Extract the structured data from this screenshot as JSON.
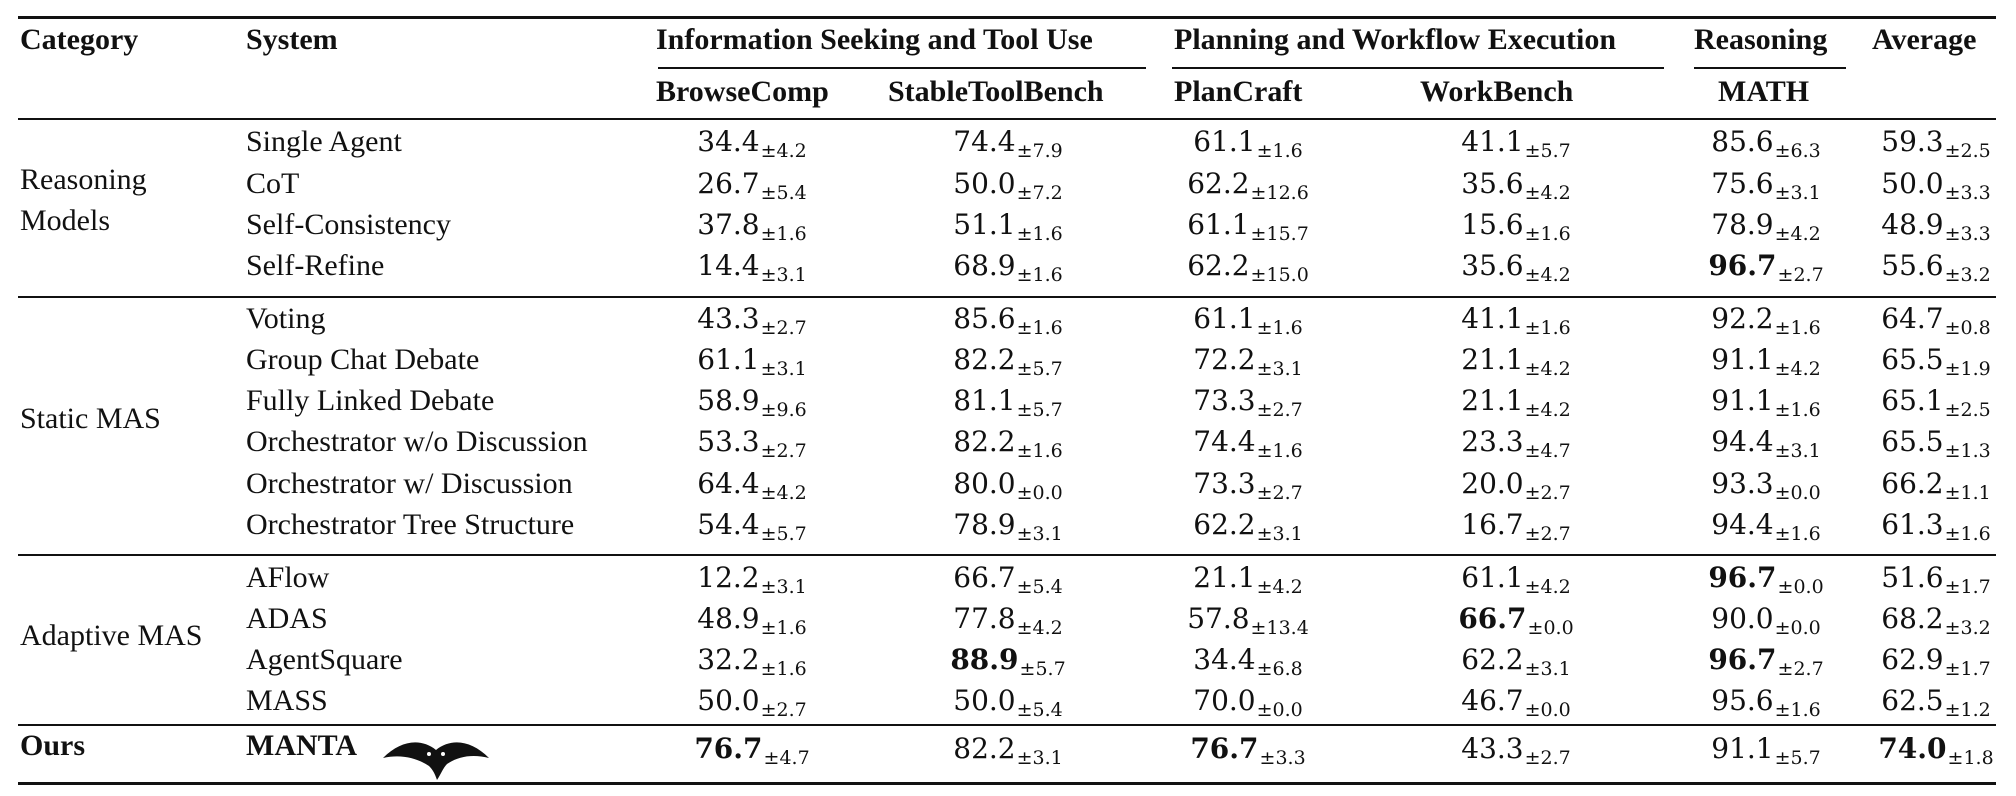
{
  "header": {
    "category": "Category",
    "system": "System",
    "groups": [
      {
        "label": "Information Seeking and Tool Use"
      },
      {
        "label": "Planning and Workflow Execution"
      },
      {
        "label": "Reasoning"
      }
    ],
    "average": "Average",
    "columns": [
      "BrowseComp",
      "StableToolBench",
      "PlanCraft",
      "WorkBench",
      "MATH"
    ]
  },
  "sections": [
    {
      "category": [
        "Reasoning",
        "Models"
      ],
      "rows": [
        {
          "system": "Single Agent",
          "cells": [
            [
              "34.4",
              "±4.2"
            ],
            [
              "74.4",
              "±7.9"
            ],
            [
              "61.1",
              "±1.6"
            ],
            [
              "41.1",
              "±5.7"
            ],
            [
              "85.6",
              "±6.3"
            ],
            [
              "59.3",
              "±2.5"
            ]
          ],
          "bold": []
        },
        {
          "system": "CoT",
          "cells": [
            [
              "26.7",
              "±5.4"
            ],
            [
              "50.0",
              "±7.2"
            ],
            [
              "62.2",
              "±12.6"
            ],
            [
              "35.6",
              "±4.2"
            ],
            [
              "75.6",
              "±3.1"
            ],
            [
              "50.0",
              "±3.3"
            ]
          ],
          "bold": []
        },
        {
          "system": "Self-Consistency",
          "cells": [
            [
              "37.8",
              "±1.6"
            ],
            [
              "51.1",
              "±1.6"
            ],
            [
              "61.1",
              "±15.7"
            ],
            [
              "15.6",
              "±1.6"
            ],
            [
              "78.9",
              "±4.2"
            ],
            [
              "48.9",
              "±3.3"
            ]
          ],
          "bold": []
        },
        {
          "system": "Self-Refine",
          "cells": [
            [
              "14.4",
              "±3.1"
            ],
            [
              "68.9",
              "±1.6"
            ],
            [
              "62.2",
              "±15.0"
            ],
            [
              "35.6",
              "±4.2"
            ],
            [
              "96.7",
              "±2.7"
            ],
            [
              "55.6",
              "±3.2"
            ]
          ],
          "bold": [
            4
          ]
        }
      ]
    },
    {
      "category": [
        "Static MAS"
      ],
      "rows": [
        {
          "system": "Voting",
          "cells": [
            [
              "43.3",
              "±2.7"
            ],
            [
              "85.6",
              "±1.6"
            ],
            [
              "61.1",
              "±1.6"
            ],
            [
              "41.1",
              "±1.6"
            ],
            [
              "92.2",
              "±1.6"
            ],
            [
              "64.7",
              "±0.8"
            ]
          ],
          "bold": []
        },
        {
          "system": "Group Chat Debate",
          "cells": [
            [
              "61.1",
              "±3.1"
            ],
            [
              "82.2",
              "±5.7"
            ],
            [
              "72.2",
              "±3.1"
            ],
            [
              "21.1",
              "±4.2"
            ],
            [
              "91.1",
              "±4.2"
            ],
            [
              "65.5",
              "±1.9"
            ]
          ],
          "bold": []
        },
        {
          "system": "Fully Linked Debate",
          "cells": [
            [
              "58.9",
              "±9.6"
            ],
            [
              "81.1",
              "±5.7"
            ],
            [
              "73.3",
              "±2.7"
            ],
            [
              "21.1",
              "±4.2"
            ],
            [
              "91.1",
              "±1.6"
            ],
            [
              "65.1",
              "±2.5"
            ]
          ],
          "bold": []
        },
        {
          "system": "Orchestrator w/o Discussion",
          "cells": [
            [
              "53.3",
              "±2.7"
            ],
            [
              "82.2",
              "±1.6"
            ],
            [
              "74.4",
              "±1.6"
            ],
            [
              "23.3",
              "±4.7"
            ],
            [
              "94.4",
              "±3.1"
            ],
            [
              "65.5",
              "±1.3"
            ]
          ],
          "bold": []
        },
        {
          "system": "Orchestrator w/ Discussion",
          "cells": [
            [
              "64.4",
              "±4.2"
            ],
            [
              "80.0",
              "±0.0"
            ],
            [
              "73.3",
              "±2.7"
            ],
            [
              "20.0",
              "±2.7"
            ],
            [
              "93.3",
              "±0.0"
            ],
            [
              "66.2",
              "±1.1"
            ]
          ],
          "bold": []
        },
        {
          "system": "Orchestrator Tree Structure",
          "cells": [
            [
              "54.4",
              "±5.7"
            ],
            [
              "78.9",
              "±3.1"
            ],
            [
              "62.2",
              "±3.1"
            ],
            [
              "16.7",
              "±2.7"
            ],
            [
              "94.4",
              "±1.6"
            ],
            [
              "61.3",
              "±1.6"
            ]
          ],
          "bold": []
        }
      ]
    },
    {
      "category": [
        "Adaptive MAS"
      ],
      "rows": [
        {
          "system": "AFlow",
          "cells": [
            [
              "12.2",
              "±3.1"
            ],
            [
              "66.7",
              "±5.4"
            ],
            [
              "21.1",
              "±4.2"
            ],
            [
              "61.1",
              "±4.2"
            ],
            [
              "96.7",
              "±0.0"
            ],
            [
              "51.6",
              "±1.7"
            ]
          ],
          "bold": [
            4
          ]
        },
        {
          "system": "ADAS",
          "cells": [
            [
              "48.9",
              "±1.6"
            ],
            [
              "77.8",
              "±4.2"
            ],
            [
              "57.8",
              "±13.4"
            ],
            [
              "66.7",
              "±0.0"
            ],
            [
              "90.0",
              "±0.0"
            ],
            [
              "68.2",
              "±3.2"
            ]
          ],
          "bold": [
            3
          ]
        },
        {
          "system": "AgentSquare",
          "cells": [
            [
              "32.2",
              "±1.6"
            ],
            [
              "88.9",
              "±5.7"
            ],
            [
              "34.4",
              "±6.8"
            ],
            [
              "62.2",
              "±3.1"
            ],
            [
              "96.7",
              "±2.7"
            ],
            [
              "62.9",
              "±1.7"
            ]
          ],
          "bold": [
            1,
            4
          ]
        },
        {
          "system": "MASS",
          "cells": [
            [
              "50.0",
              "±2.7"
            ],
            [
              "50.0",
              "±5.4"
            ],
            [
              "70.0",
              "±0.0"
            ],
            [
              "46.7",
              "±0.0"
            ],
            [
              "95.6",
              "±1.6"
            ],
            [
              "62.5",
              "±1.2"
            ]
          ],
          "bold": []
        }
      ]
    }
  ],
  "ours": {
    "category": "Ours",
    "system": "MANTA",
    "logo_icon": "manta-ray-icon",
    "cells": [
      [
        "76.7",
        "±4.7"
      ],
      [
        "82.2",
        "±3.1"
      ],
      [
        "76.7",
        "±3.3"
      ],
      [
        "43.3",
        "±2.7"
      ],
      [
        "91.1",
        "±5.7"
      ],
      [
        "74.0",
        "±1.8"
      ]
    ],
    "bold": [
      0,
      2,
      5
    ]
  }
}
